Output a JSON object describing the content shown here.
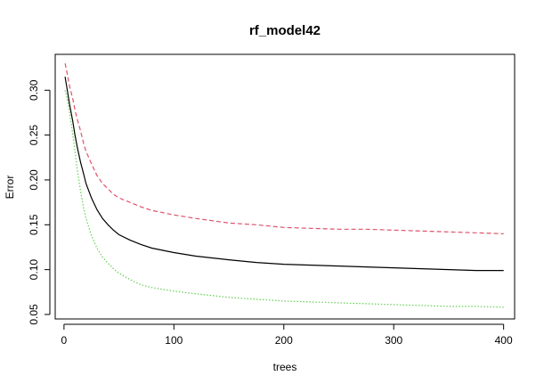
{
  "chart_data": {
    "type": "line",
    "title": "rf_model42",
    "xlabel": "trees",
    "ylabel": "Error",
    "xlim": [
      -8,
      410
    ],
    "ylim": [
      0.045,
      0.34
    ],
    "x_ticks": [
      0,
      100,
      200,
      300,
      400
    ],
    "y_ticks": [
      0.05,
      0.1,
      0.15,
      0.2,
      0.25,
      0.3
    ],
    "y_tick_labels": [
      "0.05",
      "0.10",
      "0.15",
      "0.20",
      "0.25",
      "0.30"
    ],
    "grid": false,
    "legend": "none",
    "series": [
      {
        "line_style": "solid",
        "color": "#000000",
        "x": [
          1,
          3,
          5,
          8,
          10,
          12,
          15,
          18,
          20,
          25,
          30,
          35,
          40,
          45,
          50,
          60,
          70,
          80,
          100,
          120,
          150,
          175,
          200,
          225,
          250,
          275,
          300,
          325,
          350,
          375,
          400
        ],
        "y": [
          0.315,
          0.3,
          0.285,
          0.265,
          0.25,
          0.237,
          0.22,
          0.206,
          0.196,
          0.18,
          0.167,
          0.157,
          0.15,
          0.144,
          0.139,
          0.133,
          0.128,
          0.124,
          0.119,
          0.115,
          0.111,
          0.108,
          0.106,
          0.105,
          0.104,
          0.103,
          0.102,
          0.101,
          0.1,
          0.099,
          0.099
        ]
      },
      {
        "line_style": "dashed",
        "color": "#DF536B",
        "x": [
          1,
          3,
          5,
          8,
          10,
          12,
          15,
          18,
          20,
          25,
          30,
          35,
          40,
          45,
          50,
          60,
          70,
          80,
          100,
          120,
          150,
          175,
          200,
          225,
          250,
          275,
          300,
          325,
          350,
          375,
          400
        ],
        "y": [
          0.33,
          0.318,
          0.305,
          0.29,
          0.278,
          0.268,
          0.255,
          0.24,
          0.232,
          0.218,
          0.205,
          0.196,
          0.19,
          0.184,
          0.18,
          0.175,
          0.17,
          0.166,
          0.161,
          0.157,
          0.152,
          0.15,
          0.147,
          0.146,
          0.145,
          0.145,
          0.144,
          0.143,
          0.142,
          0.141,
          0.14
        ]
      },
      {
        "line_style": "dotted",
        "color": "#61D04F",
        "x": [
          1,
          3,
          5,
          8,
          10,
          12,
          15,
          18,
          20,
          25,
          30,
          35,
          40,
          45,
          50,
          60,
          70,
          80,
          100,
          120,
          150,
          175,
          200,
          225,
          250,
          275,
          300,
          325,
          350,
          375,
          400
        ],
        "y": [
          0.3,
          0.29,
          0.276,
          0.25,
          0.232,
          0.212,
          0.188,
          0.168,
          0.157,
          0.138,
          0.124,
          0.114,
          0.107,
          0.101,
          0.096,
          0.089,
          0.083,
          0.08,
          0.076,
          0.073,
          0.069,
          0.067,
          0.065,
          0.064,
          0.063,
          0.062,
          0.061,
          0.06,
          0.059,
          0.059,
          0.058
        ]
      }
    ]
  }
}
